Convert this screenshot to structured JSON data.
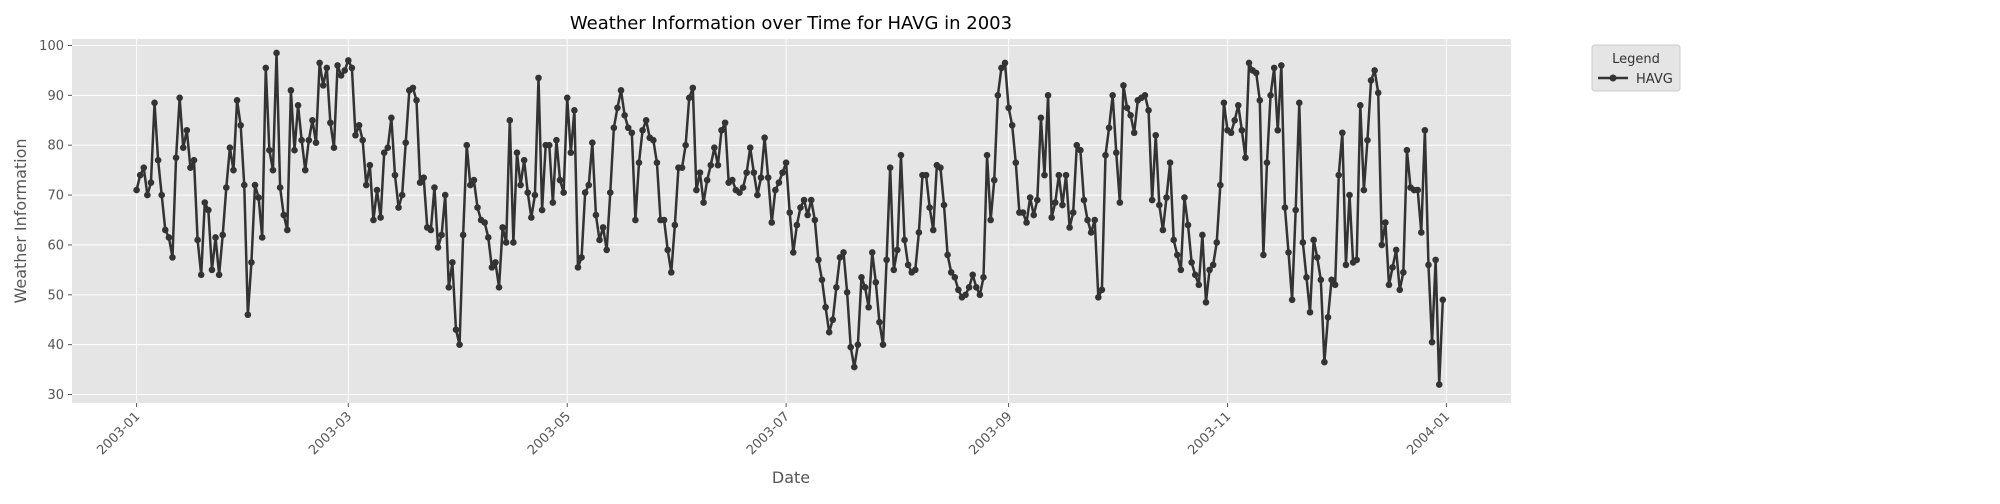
{
  "chart_data": {
    "type": "line",
    "title": "Weather Information over Time for HAVG in 2003",
    "xlabel": "Date",
    "ylabel": "Weather Information",
    "x_range": [
      "2002-12-14",
      "2004-01-19"
    ],
    "ylim": [
      28.3,
      101.3
    ],
    "grid": true,
    "x_tick_labels": [
      "2003-01",
      "2003-03",
      "2003-05",
      "2003-07",
      "2003-09",
      "2003-11",
      "2004-01"
    ],
    "x_tick_dates": [
      "2003-01-01",
      "2003-03-01",
      "2003-05-01",
      "2003-07-01",
      "2003-09-01",
      "2003-11-01",
      "2004-01-01"
    ],
    "y_ticks": [
      30,
      40,
      50,
      60,
      70,
      80,
      90,
      100
    ],
    "legend": {
      "title": "Legend",
      "position": "outside-top-right",
      "entries": [
        "HAVG"
      ]
    },
    "series": [
      {
        "name": "HAVG",
        "color": "#333333",
        "start_date": "2003-01-01",
        "step_days": 1,
        "values": [
          71,
          74,
          75.5,
          70,
          72.5,
          88.5,
          77,
          70,
          63,
          61.5,
          57.5,
          77.5,
          89.5,
          79.5,
          83,
          75.5,
          77,
          61,
          54,
          68.5,
          67,
          55,
          61.5,
          54,
          62,
          71.5,
          79.5,
          75,
          89,
          84,
          72,
          46,
          56.5,
          72,
          69.5,
          61.5,
          95.5,
          79,
          75,
          98.5,
          71.5,
          66,
          63,
          91,
          79,
          88,
          81,
          75,
          81,
          85,
          80.5,
          96.5,
          92,
          95.5,
          84.5,
          79.5,
          96,
          94,
          95,
          97,
          95.5,
          82,
          84,
          81,
          72,
          76,
          65,
          71,
          65.5,
          78.5,
          79.5,
          85.5,
          74,
          67.5,
          70,
          80.5,
          91,
          91.5,
          89,
          72.5,
          73.5,
          63.5,
          63,
          71.5,
          59.5,
          62,
          70,
          51.5,
          56.5,
          43,
          40,
          62,
          80,
          72,
          73,
          67.5,
          65,
          64.5,
          61.5,
          55.5,
          56.5,
          51.5,
          63.5,
          60.5,
          85,
          60.5,
          78.5,
          72,
          77,
          70.5,
          65.5,
          70,
          93.5,
          67,
          80,
          80,
          68.5,
          81,
          73,
          70.5,
          89.5,
          78.5,
          87,
          55.5,
          57.5,
          70.5,
          72,
          80.5,
          66,
          61,
          63.5,
          59,
          70.5,
          83.5,
          87.5,
          91,
          86,
          83.5,
          82.5,
          65,
          76.5,
          83,
          85,
          81.5,
          81,
          76.5,
          65,
          65,
          59,
          54.5,
          64,
          75.5,
          75.5,
          80,
          89.5,
          91.5,
          71,
          74.5,
          68.5,
          73,
          76,
          79.5,
          76,
          83,
          84.5,
          72.5,
          73,
          71,
          70.5,
          71.5,
          74.5,
          79.5,
          74.5,
          70,
          73.5,
          81.5,
          73.5,
          64.5,
          71,
          72.5,
          74.5,
          76.5,
          66.5,
          58.5,
          64,
          67.5,
          69,
          66,
          69,
          65,
          57,
          53,
          47.5,
          42.5,
          45,
          51.5,
          57.5,
          58.5,
          50.5,
          39.5,
          35.5,
          40,
          53.5,
          51.5,
          47.5,
          58.5,
          52.5,
          44.5,
          40,
          57,
          75.5,
          55,
          59,
          78,
          61,
          56,
          54.5,
          55,
          62.5,
          74,
          74,
          67.5,
          63,
          76,
          75.5,
          68,
          58,
          54.5,
          53.5,
          51,
          49.5,
          50,
          51.5,
          54,
          51.5,
          50,
          53.5,
          78,
          65,
          73,
          90,
          95.5,
          96.5,
          87.5,
          84,
          76.5,
          66.5,
          66.5,
          64.5,
          69.5,
          66,
          69,
          85.5,
          74,
          90,
          65.5,
          68.5,
          74,
          68,
          74,
          63.5,
          66.5,
          80,
          79,
          69,
          65,
          62.5,
          65,
          49.5,
          51,
          78,
          83.5,
          90,
          78.5,
          68.5,
          92,
          87.5,
          86,
          82.5,
          89,
          89.5,
          90,
          87,
          69,
          82,
          68,
          63,
          69.5,
          76.5,
          61,
          58,
          55,
          69.5,
          64,
          56.5,
          54,
          52,
          62,
          48.5,
          55,
          56,
          60.5,
          72,
          88.5,
          83,
          82.5,
          85,
          88,
          83,
          77.5,
          96.5,
          95,
          94.5,
          89,
          58,
          76.5,
          90,
          95.5,
          83,
          96,
          67.5,
          58.5,
          49,
          67,
          88.5,
          60.5,
          53.5,
          46.5,
          61,
          57.5,
          53,
          36.5,
          45.5,
          53,
          52,
          74,
          82.5,
          56,
          70,
          56.5,
          57,
          88,
          71,
          81,
          93,
          95,
          90.5,
          60,
          64.5,
          52,
          55.5,
          59,
          51,
          54.5,
          79,
          71.5,
          71,
          71,
          62.5,
          83,
          56,
          40.5,
          57,
          32,
          49
        ]
      }
    ]
  }
}
